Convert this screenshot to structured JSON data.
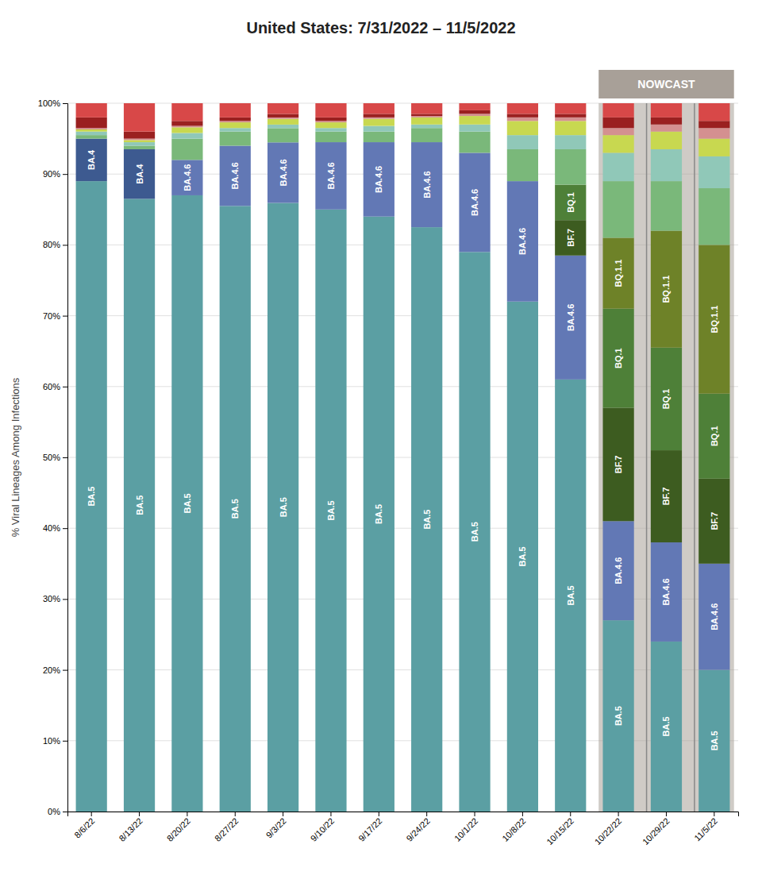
{
  "chart_data": {
    "type": "bar",
    "stacked": true,
    "title": "United States: 7/31/2022 – 11/5/2022",
    "y_label": "% Viral Lineages Among Infections",
    "categories": [
      "8/6/22",
      "8/13/22",
      "8/20/22",
      "8/27/22",
      "9/3/22",
      "9/10/22",
      "9/17/22",
      "9/24/22",
      "10/1/22",
      "10/8/22",
      "10/15/22",
      "10/22/22",
      "10/29/22",
      "11/5/22"
    ],
    "series": [
      {
        "name": "BA.5",
        "color": "#5b9fa3",
        "values": [
          89.0,
          86.5,
          87.0,
          85.5,
          85.92965,
          85.0,
          84.0,
          82.5,
          79.0,
          72.0,
          61.0,
          27.0,
          24.0,
          20.0
        ]
      },
      {
        "name": "BA.4.6",
        "color": "#6278b5",
        "values": [
          0.0,
          0.0,
          5.0,
          8.5,
          8.54271,
          9.5,
          10.5,
          12.0,
          14.0,
          17.0,
          17.5,
          14.0,
          14.0,
          15.0
        ]
      },
      {
        "name": "BA.4",
        "color": "#3d5a90",
        "values": [
          6.0,
          7.0,
          0.0,
          0.0,
          0.0,
          0.0,
          0.0,
          0.0,
          0.0,
          0.0,
          0.0,
          0.0,
          0.0,
          0.0
        ]
      },
      {
        "name": "BF.7",
        "color": "#3d5c20",
        "values": [
          0.0,
          0.0,
          0.0,
          0.0,
          0.0,
          0.0,
          0.0,
          0.0,
          0.0,
          0.0,
          5.0,
          16.0,
          13.0,
          12.0
        ]
      },
      {
        "name": "BQ.1",
        "color": "#4e8038",
        "values": [
          0.0,
          0.0,
          0.0,
          0.0,
          0.0,
          0.0,
          0.0,
          0.0,
          0.0,
          0.0,
          5.0,
          14.0,
          14.5,
          12.0
        ]
      },
      {
        "name": "BQ.1.1",
        "color": "#6e8228",
        "values": [
          0.0,
          0.0,
          0.0,
          0.0,
          0.0,
          0.0,
          0.0,
          0.0,
          0.0,
          0.0,
          0.0,
          10.0,
          16.5,
          21.0
        ]
      },
      {
        "color": "#7ab87a",
        "values": [
          0.5,
          0.5,
          3.0,
          2.0,
          2.01005,
          1.5,
          1.5,
          2.0,
          3.0,
          4.5,
          5.0,
          8.0,
          7.0,
          8.0
        ]
      },
      {
        "color": "#90c8b8",
        "values": [
          0.5,
          0.5,
          0.8,
          0.5,
          0.50251,
          0.5,
          0.8,
          0.5,
          1.0,
          2.0,
          2.0,
          4.0,
          4.5,
          4.5
        ]
      },
      {
        "color": "#c8d850",
        "values": [
          0.3,
          0.3,
          0.8,
          0.8,
          0.80402,
          0.8,
          1.0,
          1.0,
          1.2,
          2.0,
          2.0,
          2.5,
          2.5,
          2.5
        ]
      },
      {
        "color": "#d49090",
        "values": [
          0.2,
          0.2,
          0.2,
          0.2,
          0.20101,
          0.2,
          0.2,
          0.2,
          0.3,
          0.5,
          0.5,
          1.0,
          1.0,
          1.5
        ]
      },
      {
        "color": "#9a2020",
        "values": [
          1.5,
          1.0,
          0.7,
          0.5,
          0.50251,
          0.5,
          0.5,
          0.3,
          0.5,
          0.5,
          0.5,
          1.5,
          1.0,
          1.0
        ]
      },
      {
        "color": "#d84848",
        "values": [
          2.0,
          4.0,
          2.5,
          2.0,
          1.50754,
          2.0,
          1.5,
          1.5,
          1.0,
          1.5,
          1.5,
          2.0,
          2.0,
          2.5
        ]
      }
    ],
    "ylim": [
      0,
      100
    ],
    "yticks": [
      {
        "value": 0,
        "label": "0%"
      },
      {
        "value": 10,
        "label": "10%"
      },
      {
        "value": 20,
        "label": "20%"
      },
      {
        "value": 30,
        "label": "30%"
      },
      {
        "value": 40,
        "label": "40%"
      },
      {
        "value": 50,
        "label": "50%"
      },
      {
        "value": 60,
        "label": "60%"
      },
      {
        "value": 70,
        "label": "70%"
      },
      {
        "value": 80,
        "label": "80%"
      },
      {
        "value": 90,
        "label": "90%"
      },
      {
        "value": 100,
        "label": "100%"
      }
    ],
    "grid": true,
    "annotations": [
      {
        "text": "NOWCAST",
        "start": "10/22/22",
        "end": "11/5/22",
        "color": "#a8a098"
      }
    ]
  }
}
